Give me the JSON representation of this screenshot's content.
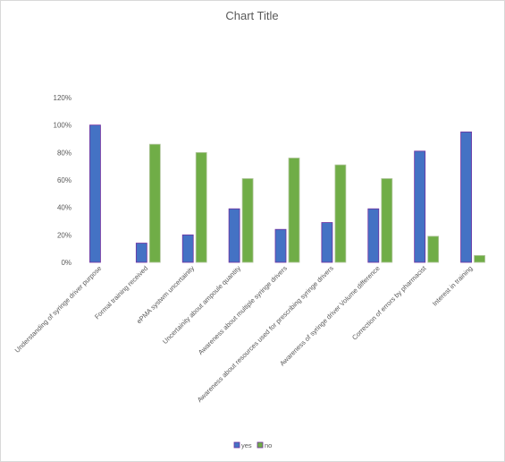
{
  "chart_data": {
    "type": "bar",
    "title": "Chart Title",
    "categories": [
      "Understanding of syringe driver purpose",
      "Formal training received",
      "ePMA systwm uncertainity",
      "Uncertainity about ampoule quantity",
      "Awareness about multiple syringe drivers",
      "Awareness about resources used for prescribing syringe drivers",
      "Awareness of syringe driver Volume difference",
      "Correction of errors by pharmacist",
      "Interest in training"
    ],
    "series": [
      {
        "name": "yes",
        "color": "#4472c4",
        "values": [
          100,
          14,
          20,
          39,
          24,
          29,
          39,
          81,
          95
        ]
      },
      {
        "name": "no",
        "color": "#70ad47",
        "values": [
          0,
          86,
          80,
          61,
          76,
          71,
          61,
          19,
          5
        ]
      }
    ],
    "ylim": [
      0,
      120
    ],
    "yticks": [
      "0%",
      "20%",
      "40%",
      "60%",
      "80%",
      "100%",
      "120%"
    ],
    "grid": false,
    "legend_position": "bottom"
  }
}
